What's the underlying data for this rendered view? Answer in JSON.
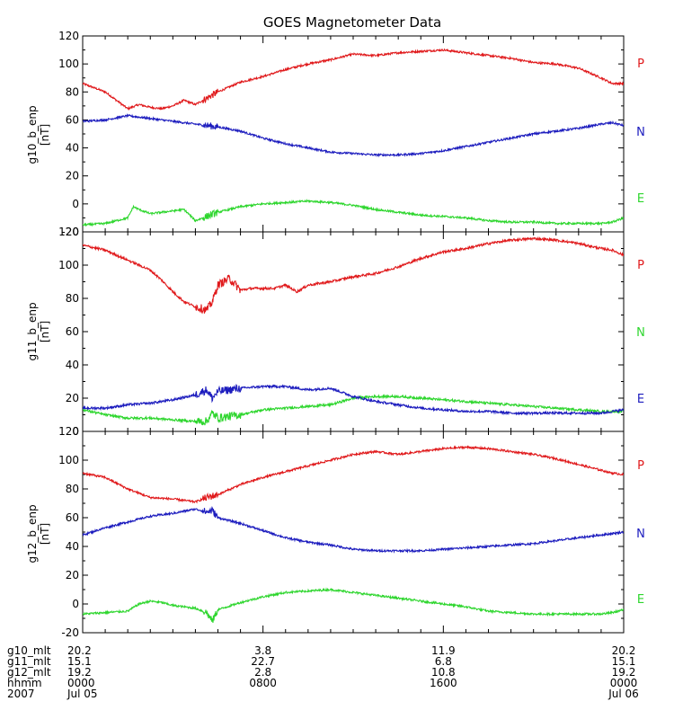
{
  "chart_data": {
    "type": "line",
    "title": "GOES Magnetometer Data",
    "x_range": [
      0,
      1440
    ],
    "x_unit": "minutes since 2007 Jul 05 0000 UT",
    "panels": [
      {
        "ylabel": "g10_b_enp",
        "yunit": "[nT]",
        "ylim": [
          -20,
          120
        ],
        "yticks": [
          -20,
          0,
          20,
          40,
          60,
          80,
          100,
          120
        ],
        "legend": [
          "P",
          "N",
          "E"
        ],
        "series": [
          {
            "name": "P",
            "color": "#e0191b",
            "x": [
              0,
              60,
              90,
              120,
              150,
              180,
              210,
              240,
              255,
              270,
              300,
              360,
              420,
              480,
              540,
              600,
              660,
              720,
              780,
              840,
              900,
              960,
              1020,
              1080,
              1140,
              1200,
              1260,
              1320,
              1380,
              1410,
              1440
            ],
            "y": [
              86,
              80,
              74,
              68,
              71,
              69,
              68,
              70,
              72,
              74,
              71,
              80,
              87,
              91,
              96,
              100,
              103,
              107,
              106,
              108,
              109,
              110,
              108,
              106,
              104,
              101,
              100,
              97,
              90,
              86,
              86
            ]
          },
          {
            "name": "N",
            "color": "#1c1cbe",
            "x": [
              0,
              60,
              120,
              180,
              240,
              300,
              360,
              420,
              480,
              540,
              600,
              660,
              720,
              780,
              840,
              900,
              960,
              1020,
              1080,
              1140,
              1200,
              1260,
              1320,
              1380,
              1410,
              1440
            ],
            "y": [
              59,
              60,
              63,
              61,
              59,
              57,
              55,
              52,
              47,
              43,
              40,
              37,
              36,
              35,
              35,
              36,
              38,
              41,
              44,
              47,
              50,
              52,
              54,
              57,
              58,
              56
            ]
          },
          {
            "name": "E",
            "color": "#2ed62e",
            "x": [
              0,
              60,
              120,
              135,
              150,
              180,
              210,
              240,
              270,
              300,
              360,
              420,
              480,
              540,
              600,
              660,
              720,
              780,
              840,
              900,
              960,
              1020,
              1080,
              1140,
              1200,
              1260,
              1320,
              1380,
              1410,
              1440
            ],
            "y": [
              -15,
              -14,
              -10,
              -2,
              -4,
              -7,
              -6,
              -5,
              -4,
              -12,
              -6,
              -2,
              0,
              1,
              2,
              1,
              -1,
              -4,
              -6,
              -8,
              -9,
              -10,
              -12,
              -13,
              -13,
              -14,
              -14,
              -14,
              -13,
              -10
            ]
          }
        ]
      },
      {
        "ylabel": "g11_b_enp",
        "yunit": "[nT]",
        "ylim": [
          0,
          120
        ],
        "yticks": [
          0,
          20,
          40,
          60,
          80,
          100,
          120
        ],
        "legend": [
          "P",
          "N",
          "E"
        ],
        "series": [
          {
            "name": "P",
            "color": "#e0191b",
            "x": [
              0,
              60,
              120,
              180,
              210,
              240,
              270,
              300,
              330,
              345,
              360,
              390,
              420,
              450,
              480,
              510,
              540,
              570,
              600,
              660,
              720,
              780,
              840,
              900,
              960,
              1020,
              1080,
              1140,
              1200,
              1260,
              1320,
              1380,
              1410,
              1440
            ],
            "y": [
              112,
              109,
              103,
              97,
              91,
              84,
              78,
              75,
              73,
              78,
              88,
              92,
              85,
              86,
              86,
              86,
              88,
              84,
              88,
              90,
              93,
              95,
              99,
              104,
              108,
              110,
              113,
              115,
              116,
              115,
              113,
              110,
              109,
              106
            ]
          },
          {
            "name": "N",
            "color": "#2ed62e",
            "x": [
              0,
              60,
              120,
              180,
              240,
              300,
              330,
              345,
              360,
              420,
              480,
              540,
              600,
              660,
              720,
              780,
              840,
              900,
              960,
              1020,
              1080,
              1140,
              1200,
              1260,
              1320,
              1380,
              1440
            ],
            "y": [
              13,
              10,
              8,
              8,
              7,
              6,
              6,
              11,
              8,
              10,
              13,
              14,
              15,
              16,
              20,
              21,
              21,
              20,
              19,
              18,
              17,
              16,
              15,
              14,
              13,
              12,
              12
            ]
          },
          {
            "name": "E",
            "color": "#1c1cbe",
            "x": [
              0,
              60,
              120,
              180,
              240,
              300,
              330,
              345,
              360,
              420,
              480,
              540,
              600,
              660,
              720,
              780,
              840,
              900,
              960,
              1020,
              1080,
              1140,
              1200,
              1260,
              1320,
              1380,
              1440
            ],
            "y": [
              14,
              14,
              16,
              17,
              19,
              22,
              25,
              20,
              24,
              26,
              27,
              27,
              25,
              26,
              21,
              18,
              16,
              14,
              13,
              12,
              12,
              11,
              11,
              11,
              11,
              11,
              13
            ]
          }
        ]
      },
      {
        "ylabel": "g12_b_enp",
        "yunit": "[nT]",
        "ylim": [
          -20,
          120
        ],
        "yticks": [
          -20,
          0,
          20,
          40,
          60,
          80,
          100,
          120
        ],
        "legend": [
          "P",
          "N",
          "E"
        ],
        "series": [
          {
            "name": "P",
            "color": "#e0191b",
            "x": [
              0,
              60,
              120,
              180,
              240,
              300,
              330,
              360,
              420,
              480,
              540,
              600,
              660,
              720,
              780,
              840,
              900,
              960,
              1020,
              1080,
              1140,
              1200,
              1260,
              1320,
              1380,
              1410,
              1440
            ],
            "y": [
              91,
              88,
              80,
              74,
              73,
              71,
              74,
              76,
              83,
              88,
              92,
              96,
              100,
              104,
              106,
              104,
              106,
              108,
              109,
              108,
              106,
              104,
              101,
              97,
              93,
              91,
              90
            ]
          },
          {
            "name": "N",
            "color": "#1c1cbe",
            "x": [
              0,
              60,
              120,
              180,
              240,
              300,
              330,
              345,
              360,
              420,
              480,
              540,
              600,
              660,
              720,
              780,
              840,
              900,
              960,
              1020,
              1080,
              1140,
              1200,
              1260,
              1320,
              1380,
              1440
            ],
            "y": [
              48,
              53,
              57,
              61,
              63,
              66,
              64,
              65,
              60,
              56,
              51,
              46,
              43,
              41,
              38,
              37,
              37,
              37,
              38,
              39,
              40,
              41,
              42,
              44,
              46,
              48,
              50
            ]
          },
          {
            "name": "E",
            "color": "#2ed62e",
            "x": [
              0,
              60,
              120,
              150,
              180,
              210,
              240,
              270,
              300,
              330,
              345,
              360,
              420,
              480,
              540,
              600,
              660,
              720,
              780,
              840,
              900,
              960,
              1020,
              1080,
              1140,
              1200,
              1260,
              1320,
              1380,
              1410,
              1440
            ],
            "y": [
              -7,
              -6,
              -5,
              0,
              2,
              1,
              -1,
              -2,
              -3,
              -6,
              -12,
              -4,
              1,
              5,
              8,
              9,
              10,
              8,
              6,
              4,
              2,
              0,
              -2,
              -5,
              -6,
              -7,
              -7,
              -7,
              -7,
              -6,
              -4
            ]
          }
        ]
      }
    ],
    "x_axis_table": {
      "labels": [
        "g10_mlt",
        "g11_mlt",
        "g12_mlt",
        "hhmm",
        "2007"
      ],
      "columns": [
        {
          "x": 0,
          "values": [
            "20.2",
            "15.1",
            "19.2",
            "0000",
            "Jul 05"
          ]
        },
        {
          "x": 480,
          "values": [
            "3.8",
            "22.7",
            "2.8",
            "0800",
            ""
          ]
        },
        {
          "x": 960,
          "values": [
            "11.9",
            "6.8",
            "10.8",
            "1600",
            ""
          ]
        },
        {
          "x": 1440,
          "values": [
            "20.2",
            "15.1",
            "19.2",
            "0000",
            "Jul 06"
          ]
        }
      ]
    }
  }
}
